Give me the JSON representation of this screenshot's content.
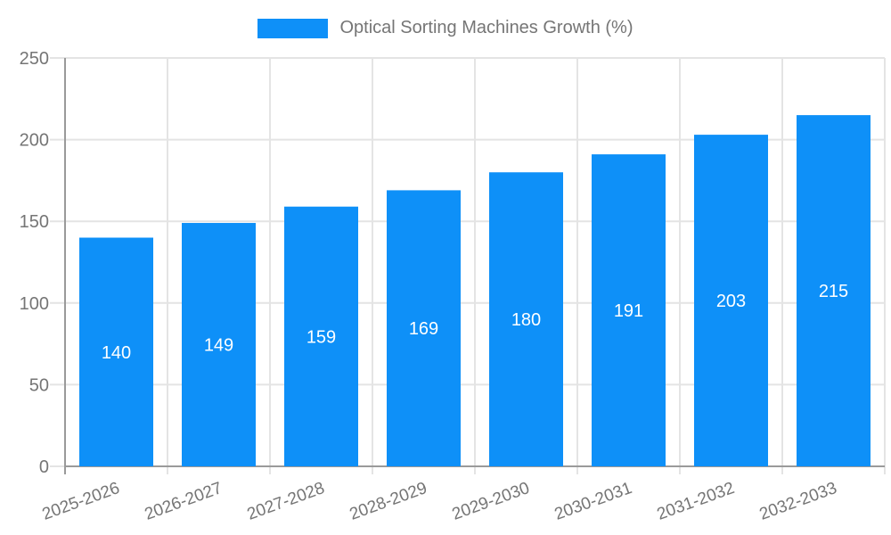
{
  "legend": {
    "label": "Optical Sorting Machines Growth (%)"
  },
  "chart_data": {
    "type": "bar",
    "title": "Optical Sorting Machines Growth (%)",
    "categories": [
      "2025-2026",
      "2026-2027",
      "2027-2028",
      "2028-2029",
      "2029-2030",
      "2030-2031",
      "2031-2032",
      "2032-2033"
    ],
    "values": [
      140,
      149,
      159,
      169,
      180,
      191,
      203,
      215
    ],
    "bar_labels": [
      "140",
      "149",
      "159",
      "169",
      "180",
      "191",
      "203",
      "215"
    ],
    "xlabel": "",
    "ylabel": "",
    "ylim": [
      0,
      250
    ],
    "ytick_step": 50,
    "ytick_labels": [
      "0",
      "50",
      "100",
      "150",
      "200",
      "250"
    ],
    "grid": true,
    "legend_position": "top",
    "bar_color": "#0e90f8",
    "bar_label_color": "#ffffff",
    "axis_color": "#9a9a9a",
    "grid_color": "#e4e4e4",
    "tick_label_color": "#757575"
  }
}
